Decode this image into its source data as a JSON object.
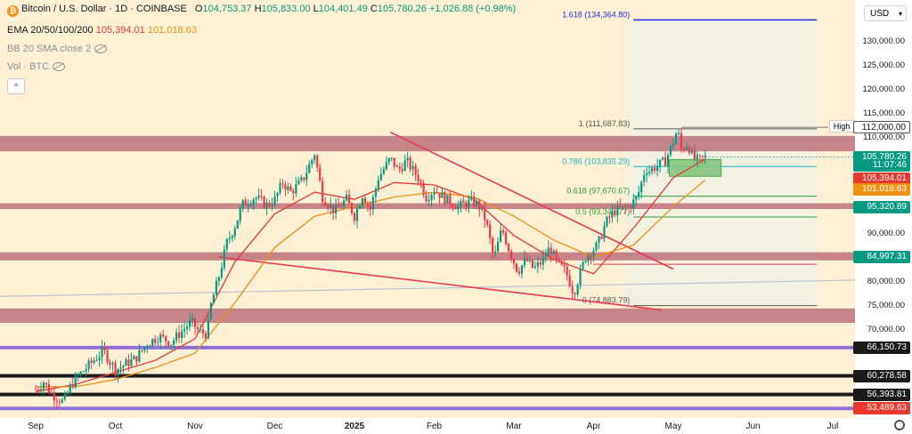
{
  "header": {
    "symbol_title": "Bitcoin / U.S. Dollar · 1D · COINBASE",
    "open_label": "O",
    "open": "104,753.37",
    "high_label": "H",
    "high": "105,833.00",
    "low_label": "L",
    "low": "104,401.49",
    "close_label": "C",
    "close": "105,780.26",
    "change": "+1,026.88 (+0.98%)",
    "ema_label": "EMA 20/50/100/200",
    "ema_val_1": "105,394.01",
    "ema_val_2": "101,018.63",
    "bb_label": "BB 20 SMA close 2",
    "vol_label": "Vol · BTC",
    "collapse_symbol": "^"
  },
  "currency_select": "USD",
  "colors": {
    "background": "#fdf0d5",
    "candle_up": "#089981",
    "candle_down": "#f23645",
    "resistance_zone": "#b5616f",
    "support_purple": "#7b5bd6",
    "ema_red": "#e8392e",
    "ema_orange": "#f0900f",
    "fib_blue": "#1e2fe0",
    "fib_teal": "#22b3c4",
    "fib_green": "#2e9e3a",
    "trend_line": "#e8394f"
  },
  "chart_data": {
    "type": "candlestick",
    "title": "Bitcoin / U.S. Dollar · 1D · COINBASE",
    "ylim": [
      51500,
      138500
    ],
    "x_labels": [
      "Sep",
      "Oct",
      "Nov",
      "Dec",
      "2025",
      "Feb",
      "Mar",
      "Apr",
      "May",
      "Jun",
      "Jul"
    ],
    "x_label_months": [
      0,
      1,
      2,
      3,
      4,
      5,
      6,
      7,
      8,
      9,
      10
    ],
    "y_ticks": [
      "130,000.00",
      "125,000.00",
      "120,000.00",
      "115,000.00",
      "110,000.00",
      "90,000.00",
      "80,000.00",
      "75,000.00",
      "70,000.00"
    ],
    "y_tick_values": [
      130000,
      125000,
      120000,
      115000,
      110000,
      90000,
      80000,
      75000,
      70000
    ],
    "grid": false,
    "close_path": [
      [
        0.0,
        57500
      ],
      [
        0.1,
        59000
      ],
      [
        0.2,
        56500
      ],
      [
        0.35,
        54800
      ],
      [
        0.45,
        58500
      ],
      [
        0.55,
        60500
      ],
      [
        0.7,
        63000
      ],
      [
        0.85,
        65500
      ],
      [
        1.0,
        61500
      ],
      [
        1.1,
        62500
      ],
      [
        1.25,
        63800
      ],
      [
        1.4,
        67000
      ],
      [
        1.55,
        68500
      ],
      [
        1.7,
        67200
      ],
      [
        1.8,
        69000
      ],
      [
        1.95,
        71500
      ],
      [
        2.05,
        69500
      ],
      [
        2.15,
        69000
      ],
      [
        2.2,
        75000
      ],
      [
        2.3,
        81000
      ],
      [
        2.4,
        88000
      ],
      [
        2.5,
        91500
      ],
      [
        2.6,
        96000
      ],
      [
        2.75,
        97500
      ],
      [
        2.9,
        95800
      ],
      [
        3.0,
        97000
      ],
      [
        3.1,
        100500
      ],
      [
        3.2,
        98500
      ],
      [
        3.35,
        101000
      ],
      [
        3.5,
        106500
      ],
      [
        3.6,
        97500
      ],
      [
        3.75,
        94500
      ],
      [
        3.9,
        97000
      ],
      [
        4.0,
        93500
      ],
      [
        4.1,
        98000
      ],
      [
        4.2,
        95000
      ],
      [
        4.3,
        101500
      ],
      [
        4.45,
        105500
      ],
      [
        4.55,
        103000
      ],
      [
        4.65,
        105000
      ],
      [
        4.8,
        101500
      ],
      [
        4.9,
        97500
      ],
      [
        5.0,
        99000
      ],
      [
        5.15,
        97000
      ],
      [
        5.3,
        95500
      ],
      [
        5.45,
        96500
      ],
      [
        5.55,
        96000
      ],
      [
        5.65,
        92500
      ],
      [
        5.75,
        84500
      ],
      [
        5.85,
        91000
      ],
      [
        5.95,
        86000
      ],
      [
        6.05,
        82000
      ],
      [
        6.15,
        84500
      ],
      [
        6.25,
        82500
      ],
      [
        6.35,
        84000
      ],
      [
        6.45,
        87000
      ],
      [
        6.55,
        83500
      ],
      [
        6.65,
        82000
      ],
      [
        6.75,
        77500
      ],
      [
        6.8,
        80000
      ],
      [
        6.9,
        85000
      ],
      [
        7.05,
        87500
      ],
      [
        7.15,
        92000
      ],
      [
        7.25,
        94500
      ],
      [
        7.35,
        95000
      ],
      [
        7.45,
        95500
      ],
      [
        7.55,
        97500
      ],
      [
        7.65,
        103500
      ],
      [
        7.7,
        103000
      ],
      [
        7.8,
        104000
      ],
      [
        7.9,
        105000
      ],
      [
        8.0,
        109000
      ],
      [
        8.05,
        111500
      ],
      [
        8.1,
        107500
      ],
      [
        8.18,
        108500
      ],
      [
        8.25,
        105500
      ],
      [
        8.32,
        105000
      ],
      [
        8.4,
        105780
      ]
    ],
    "ema": [
      {
        "name": "EMA 20/50/100/200",
        "color": "#e8392e",
        "points": [
          [
            0,
            57000
          ],
          [
            0.5,
            58500
          ],
          [
            1,
            61000
          ],
          [
            1.5,
            63500
          ],
          [
            2,
            68000
          ],
          [
            2.5,
            84000
          ],
          [
            3,
            94000
          ],
          [
            3.5,
            98500
          ],
          [
            4,
            97000
          ],
          [
            4.5,
            100500
          ],
          [
            5,
            100000
          ],
          [
            5.5,
            97000
          ],
          [
            6,
            89500
          ],
          [
            6.5,
            84500
          ],
          [
            7,
            81500
          ],
          [
            7.5,
            91000
          ],
          [
            8,
            101500
          ],
          [
            8.4,
            105394
          ]
        ]
      },
      {
        "name": "EMA 20/50/100/200",
        "color": "#f0900f",
        "points": [
          [
            0,
            58000
          ],
          [
            0.5,
            58000
          ],
          [
            1,
            59500
          ],
          [
            1.5,
            62000
          ],
          [
            2,
            65000
          ],
          [
            2.5,
            75500
          ],
          [
            3,
            87000
          ],
          [
            3.5,
            93500
          ],
          [
            4,
            95500
          ],
          [
            4.5,
            97500
          ],
          [
            5,
            98500
          ],
          [
            5.5,
            97500
          ],
          [
            6,
            93500
          ],
          [
            6.5,
            88500
          ],
          [
            7,
            85000
          ],
          [
            7.5,
            87500
          ],
          [
            8,
            95500
          ],
          [
            8.4,
            101019
          ]
        ]
      }
    ],
    "zones": [
      {
        "y1": 107000,
        "y2": 110200
      },
      {
        "y1": 95000,
        "y2": 96200
      },
      {
        "y1": 84300,
        "y2": 86000
      },
      {
        "y1": 71300,
        "y2": 74300
      }
    ],
    "horizontal_levels": [
      {
        "price": 66150.73,
        "label": "66,150.73",
        "color": "#7b5bd6"
      },
      {
        "price": 60278.58,
        "label": "60,278.58",
        "color": "#1b1b1b"
      },
      {
        "price": 56393.81,
        "label": "56,393.81",
        "color": "#1b1b1b"
      },
      {
        "price": 53489.63,
        "label": "53,489.63",
        "color": "#7b5bd6"
      }
    ],
    "fib_levels": [
      {
        "ratio": "1.618",
        "price": 134364.8,
        "text": "1.618 (134,364.80)",
        "color": "#1e2fe0"
      },
      {
        "ratio": "1",
        "price": 111687.83,
        "text": "1 (111,687.83)",
        "color": "#555555"
      },
      {
        "ratio": "0.786",
        "price": 103835.29,
        "text": "0.786 (103,835.29)",
        "color": "#22b3c4"
      },
      {
        "ratio": "0.618",
        "price": 97670.67,
        "text": "0.618 (97,670.67)",
        "color": "#2e9e3a"
      },
      {
        "ratio": "0.5",
        "price": 93340.77,
        "text": "0.5 (93,340.77)",
        "color": "#2e9e3a"
      },
      {
        "ratio": "0",
        "price": 74883.79,
        "text": "0 (74,883.79)",
        "color": "#555555"
      }
    ],
    "axis_badges": [
      {
        "label": "112,000.00",
        "price": 112000,
        "bg": "#ffffff",
        "fg": "#131722"
      },
      {
        "label": "105,780.26",
        "price": 105780.26,
        "bg": "#089981",
        "fg": "#ffffff"
      },
      {
        "label": "11:07:46",
        "price": 104100,
        "bg": "#089981",
        "fg": "#ffffff"
      },
      {
        "label": "105,394.01",
        "price": 101300,
        "bg": "#e8392e",
        "fg": "#ffffff"
      },
      {
        "label": "101,018.63",
        "price": 99000,
        "bg": "#f0900f",
        "fg": "#ffffff"
      },
      {
        "label": "95,320.89",
        "price": 95320.89,
        "bg": "#089981",
        "fg": "#ffffff"
      },
      {
        "label": "84,997.31",
        "price": 84997.31,
        "bg": "#089981",
        "fg": "#ffffff"
      },
      {
        "label": "66,150.73",
        "price": 66150.73,
        "bg": "#1b1b1b",
        "fg": "#ffffff"
      },
      {
        "label": "60,278.58",
        "price": 60278.58,
        "bg": "#1b1b1b",
        "fg": "#ffffff"
      },
      {
        "label": "56,393.81",
        "price": 56393.81,
        "bg": "#1b1b1b",
        "fg": "#ffffff"
      },
      {
        "label": "53,489.63",
        "price": 53489.63,
        "bg": "#e8392e",
        "fg": "#ffffff"
      }
    ],
    "high_label": "High"
  }
}
